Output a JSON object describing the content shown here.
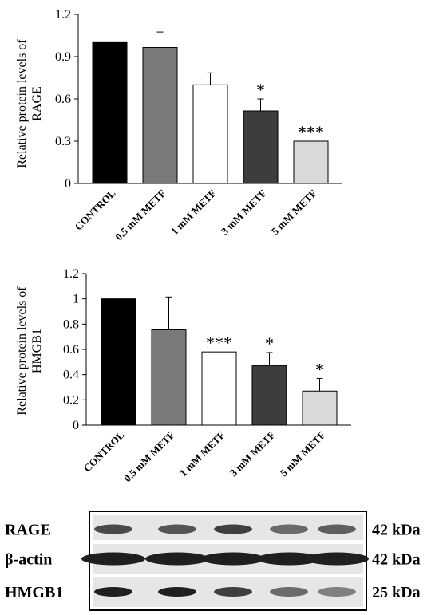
{
  "chart_data": [
    {
      "type": "bar",
      "ylabel": "Relative protein levels of RAGE",
      "ylabel_lines": [
        "Relative protein levels of",
        "RAGE"
      ],
      "categories": [
        "CONTROL",
        "0.5 mM METF",
        "1 mM METF",
        "3 mM METF",
        "5 mM METF"
      ],
      "values": [
        1.0,
        0.965,
        0.7,
        0.515,
        0.3
      ],
      "errors": [
        0.0,
        0.11,
        0.085,
        0.085,
        0.0
      ],
      "significance": [
        "",
        "",
        "",
        "*",
        "***"
      ],
      "colors": [
        "#000000",
        "#7a7a7a",
        "#ffffff",
        "#3d3d3d",
        "#d9d9d9"
      ],
      "ylim": [
        0,
        1.2
      ],
      "yticks": [
        "0",
        "0.3",
        "0.6",
        "0.9",
        "1.2"
      ],
      "ytick_values": [
        0,
        0.3,
        0.6,
        0.9,
        1.2
      ],
      "grid": false
    },
    {
      "type": "bar",
      "ylabel": "Relative protein levels of HMGB1",
      "ylabel_lines": [
        "Relative protein levels of",
        "HMGB1"
      ],
      "categories": [
        "CONTROL",
        "0.5 mM METF",
        "1 mM METF",
        "3 mM METF",
        "5 mM METF"
      ],
      "values": [
        1.0,
        0.755,
        0.58,
        0.47,
        0.27
      ],
      "errors": [
        0.0,
        0.26,
        0.0,
        0.105,
        0.1
      ],
      "significance": [
        "",
        "",
        "***",
        "*",
        "*"
      ],
      "colors": [
        "#000000",
        "#7a7a7a",
        "#ffffff",
        "#3d3d3d",
        "#d9d9d9"
      ],
      "ylim": [
        0,
        1.2
      ],
      "yticks": [
        "0",
        "0.2",
        "0.4",
        "0.6",
        "0.8",
        "1",
        "1.2"
      ],
      "ytick_values": [
        0,
        0.2,
        0.4,
        0.6,
        0.8,
        1,
        1.2
      ],
      "grid": false
    }
  ],
  "blot": {
    "rows": [
      {
        "label": "RAGE",
        "size": "42 kDa",
        "intensity": [
          0.75,
          0.7,
          0.8,
          0.6,
          0.65
        ]
      },
      {
        "label": "β-actin",
        "size": "42 kDa",
        "intensity": [
          0.95,
          0.95,
          0.95,
          0.95,
          0.95
        ]
      },
      {
        "label": "HMGB1",
        "size": "25 kDa",
        "intensity": [
          0.95,
          0.95,
          0.8,
          0.6,
          0.5
        ]
      }
    ]
  }
}
